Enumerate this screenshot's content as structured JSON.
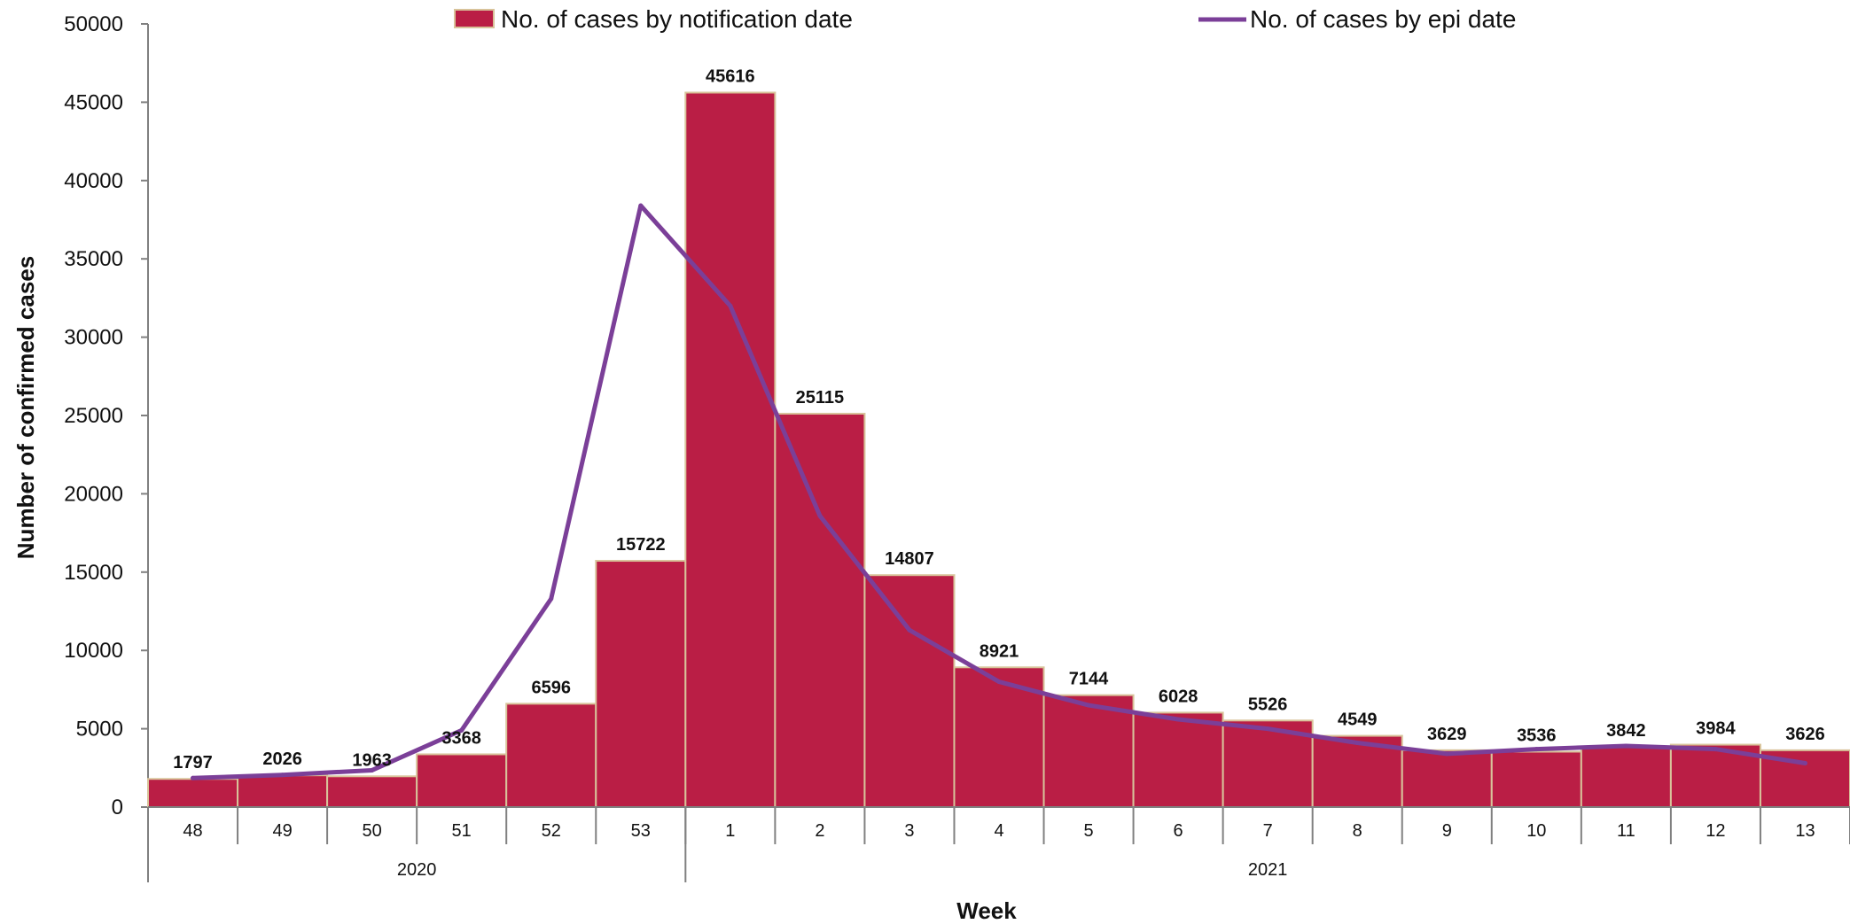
{
  "chart_data": {
    "type": "bar",
    "ylabel": "Number of confirmed cases",
    "xlabel": "Week",
    "ylim": [
      0,
      50000
    ],
    "y_ticks": [
      0,
      5000,
      10000,
      15000,
      20000,
      25000,
      30000,
      35000,
      40000,
      45000,
      50000
    ],
    "categories": [
      "48",
      "49",
      "50",
      "51",
      "52",
      "53",
      "1",
      "2",
      "3",
      "4",
      "5",
      "6",
      "7",
      "8",
      "9",
      "10",
      "11",
      "12",
      "13"
    ],
    "year_groups": [
      {
        "label": "2020",
        "start": 0,
        "count": 6
      },
      {
        "label": "2021",
        "start": 6,
        "count": 13
      }
    ],
    "series": [
      {
        "name": "No. of cases by notification date",
        "type": "bar",
        "color": "#BA1E45",
        "values": [
          1797,
          2026,
          1963,
          3368,
          6596,
          15722,
          45616,
          25115,
          14807,
          8921,
          7144,
          6028,
          5526,
          4549,
          3629,
          3536,
          3842,
          3984,
          3626
        ]
      },
      {
        "name": "No. of cases by epi date",
        "type": "line",
        "color": "#7B3F98",
        "values": [
          1850,
          2050,
          2350,
          4900,
          13300,
          38400,
          32000,
          18600,
          11300,
          8000,
          6500,
          5600,
          5000,
          4100,
          3400,
          3700,
          3900,
          3700,
          2800
        ]
      }
    ],
    "legend_position": "top",
    "grid": false
  }
}
